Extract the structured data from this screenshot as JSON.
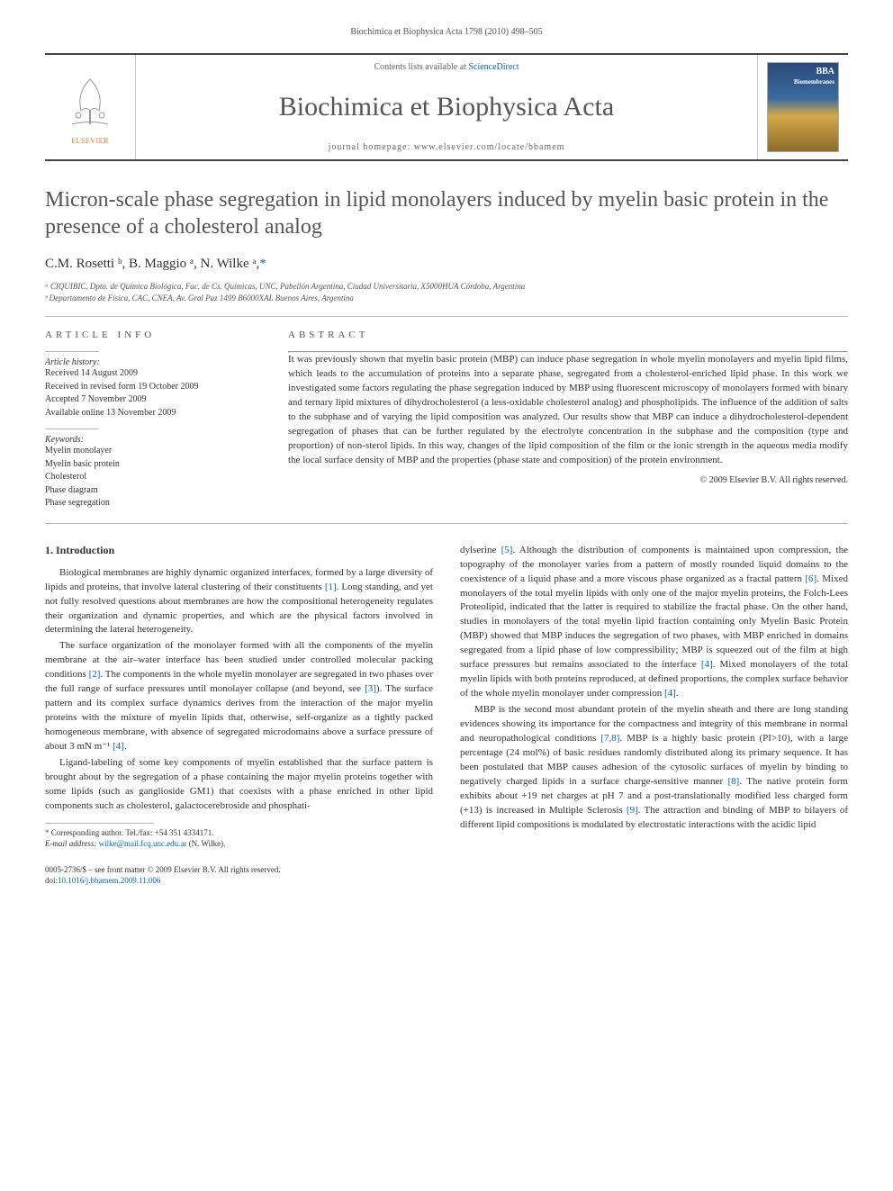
{
  "running_header": "Biochimica et Biophysica Acta 1798 (2010) 498–505",
  "masthead": {
    "contents_line_prefix": "Contents lists available at ",
    "contents_link": "ScienceDirect",
    "journal_name": "Biochimica et Biophysica Acta",
    "homepage_prefix": "journal homepage: ",
    "homepage": "www.elsevier.com/locate/bbamem",
    "publisher": "ELSEVIER",
    "cover_tag_top": "BBA",
    "cover_tag_bottom": "Biomembranes"
  },
  "title": "Micron-scale phase segregation in lipid monolayers induced by myelin basic protein in the presence of a cholesterol analog",
  "authors_html": "C.M. Rosetti ᵇ, B. Maggio ᵃ, N. Wilke ᵃ,",
  "corr_marker": "*",
  "affiliations": {
    "a": "ᵃ CIQUIBIC, Dpto. de Química Biológica, Fac. de Cs. Químicas, UNC, Pabellón Argentina, Ciudad Universitaria, X5000HUA Córdoba, Argentina",
    "b": "ᵇ Departamento de Física, CAC, CNEA, Av. Gral Paz 1499 B6000XAL Buenos Aires, Argentina"
  },
  "article_info": {
    "heading": "ARTICLE INFO",
    "history_label": "Article history:",
    "received": "Received 14 August 2009",
    "revised": "Received in revised form 19 October 2009",
    "accepted": "Accepted 7 November 2009",
    "online": "Available online 13 November 2009",
    "keywords_label": "Keywords:",
    "keywords": [
      "Myelin monolayer",
      "Myelin basic protein",
      "Cholesterol",
      "Phase diagram",
      "Phase segregation"
    ]
  },
  "abstract": {
    "heading": "ABSTRACT",
    "text": "It was previously shown that myelin basic protein (MBP) can induce phase segregation in whole myelin monolayers and myelin lipid films, which leads to the accumulation of proteins into a separate phase, segregated from a cholesterol-enriched lipid phase. In this work we investigated some factors regulating the phase segregation induced by MBP using fluorescent microscopy of monolayers formed with binary and ternary lipid mixtures of dihydrocholesterol (a less-oxidable cholesterol analog) and phospholipids. The influence of the addition of salts to the subphase and of varying the lipid composition was analyzed. Our results show that MBP can induce a dihydrocholesterol-dependent segregation of phases that can be further regulated by the electrolyte concentration in the subphase and the composition (type and proportion) of non-sterol lipids. In this way, changes of the lipid composition of the film or the ionic strength in the aqueous media modify the local surface density of MBP and the properties (phase state and composition) of the protein environment.",
    "copyright": "© 2009 Elsevier B.V. All rights reserved."
  },
  "body": {
    "section_heading": "1. Introduction",
    "left_paragraphs": [
      "Biological membranes are highly dynamic organized interfaces, formed by a large diversity of lipids and proteins, that involve lateral clustering of their constituents [1]. Long standing, and yet not fully resolved questions about membranes are how the compositional heterogeneity regulates their organization and dynamic properties, and which are the physical factors involved in determining the lateral heterogeneity.",
      "The surface organization of the monolayer formed with all the components of the myelin membrane at the air–water interface has been studied under controlled molecular packing conditions [2]. The components in the whole myelin monolayer are segregated in two phases over the full range of surface pressures until monolayer collapse (and beyond, see [3]). The surface pattern and its complex surface dynamics derives from the interaction of the major myelin proteins with the mixture of myelin lipids that, otherwise, self-organize as a tightly packed homogeneous membrane, with absence of segregated microdomains above a surface pressure of about 3 mN m⁻¹ [4].",
      "Ligand-labeling of some key components of myelin established that the surface pattern is brought about by the segregation of a phase containing the major myelin proteins together with some lipids (such as ganglioside GM1) that coexists with a phase enriched in other lipid components such as cholesterol, galactocerebroside and phosphati-"
    ],
    "right_paragraphs": [
      "dylserine [5]. Although the distribution of components is maintained upon compression, the topography of the monolayer varies from a pattern of mostly rounded liquid domains to the coexistence of a liquid phase and a more viscous phase organized as a fractal pattern [6]. Mixed monolayers of the total myelin lipids with only one of the major myelin proteins, the Folch-Lees Proteolipid, indicated that the latter is required to stabilize the fractal phase. On the other hand, studies in monolayers of the total myelin lipid fraction containing only Myelin Basic Protein (MBP) showed that MBP induces the segregation of two phases, with MBP enriched in domains segregated from a lipid phase of low compressibility; MBP is squeezed out of the film at high surface pressures but remains associated to the interface [4]. Mixed monolayers of the total myelin lipids with both proteins reproduced, at defined proportions, the complex surface behavior of the whole myelin monolayer under compression [4].",
      "MBP is the second most abundant protein of the myelin sheath and there are long standing evidences showing its importance for the compactness and integrity of this membrane in normal and neuropathological conditions [7,8]. MBP is a highly basic protein (PI>10), with a large percentage (24 mol%) of basic residues randomly distributed along its primary sequence. It has been postulated that MBP causes adhesion of the cytosolic surfaces of myelin by binding to negatively charged lipids in a surface charge-sensitive manner [8]. The native protein form exhibits about +19 net charges at pH 7 and a post-translationally modified less charged form (+13) is increased in Multiple Sclerosis [9]. The attraction and binding of MBP to bilayers of different lipid compositions is modulated by electrostatic interactions with the acidic lipid"
    ]
  },
  "footnote": {
    "corr_line": "Corresponding author. Tel./fax: +54 351 4334171.",
    "email_label": "E-mail address: ",
    "email": "wilke@mail.fcq.unc.edu.ar",
    "email_suffix": " (N. Wilke)."
  },
  "footer": {
    "front_matter": "0005-2736/$ – see front matter © 2009 Elsevier B.V. All rights reserved.",
    "doi_prefix": "doi:",
    "doi": "10.1016/j.bbamem.2009.11.006"
  },
  "refs": {
    "r1": "[1]",
    "r2": "[2]",
    "r3": "[3]",
    "r4": "[4]",
    "r5": "[5]",
    "r6": "[6]",
    "r78": "[7,8]",
    "r8": "[8]",
    "r9": "[9]"
  },
  "colors": {
    "link": "#0066cc",
    "rule": "#bbbbbb",
    "heading": "#555555",
    "publisher_orange": "#e67817"
  }
}
